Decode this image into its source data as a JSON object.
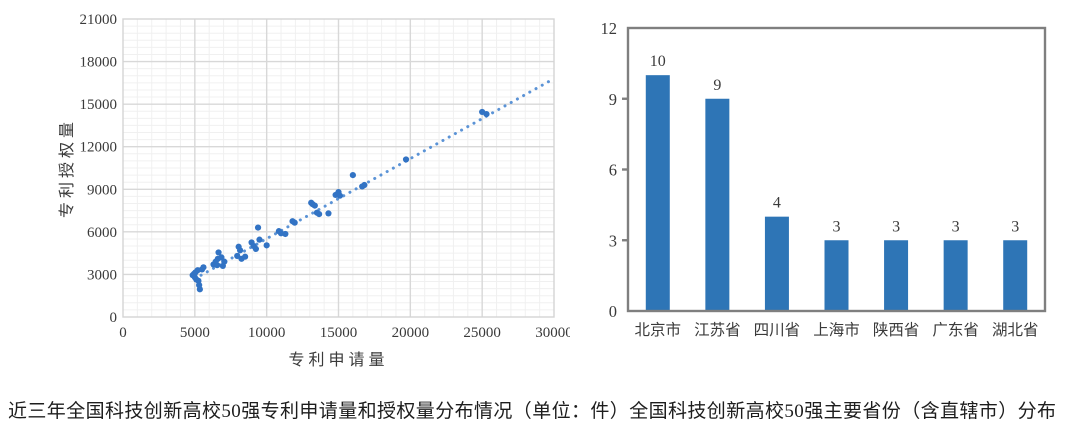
{
  "caption": "近三年全国科技创新高校50强专利申请量和授权量分布情况（单位：件）全国科技创新高校50强主要省份（含直辖市）分布",
  "colors": {
    "marker": "#3273c4",
    "trend": "#5b93d6",
    "bar": "#2e75b6",
    "frame": "#7f7f7f",
    "grid_major": "#d8d8d8",
    "grid_minor": "#f0f0f0",
    "plot_border": "#d4d4d4",
    "axis_text": "#3a3a3a"
  },
  "chart_data": [
    {
      "type": "scatter",
      "title": "",
      "xlabel": "专利申请量",
      "ylabel": "专利授权量",
      "xlim": [
        0,
        30000
      ],
      "ylim": [
        0,
        21000
      ],
      "xticks": [
        0,
        5000,
        10000,
        15000,
        20000,
        25000,
        30000
      ],
      "yticks": [
        0,
        3000,
        6000,
        9000,
        12000,
        15000,
        18000,
        21000
      ],
      "grid": "major+minor",
      "legend_position": "none",
      "trendline": {
        "style": "dotted",
        "x1": 5000,
        "y1": 2700,
        "x2": 30000,
        "y2": 16800
      },
      "points": [
        [
          4850,
          2950
        ],
        [
          4950,
          3050
        ],
        [
          5000,
          2800
        ],
        [
          5050,
          3150
        ],
        [
          5100,
          2650
        ],
        [
          5200,
          3300
        ],
        [
          5250,
          2550
        ],
        [
          5300,
          2250
        ],
        [
          5350,
          1950
        ],
        [
          5500,
          3350
        ],
        [
          5600,
          3500
        ],
        [
          6300,
          3700
        ],
        [
          6450,
          3900
        ],
        [
          6550,
          3650
        ],
        [
          6600,
          4100
        ],
        [
          6650,
          4550
        ],
        [
          6850,
          4200
        ],
        [
          6950,
          3600
        ],
        [
          7050,
          3900
        ],
        [
          7950,
          4300
        ],
        [
          8050,
          4950
        ],
        [
          8150,
          4700
        ],
        [
          8250,
          4100
        ],
        [
          8500,
          4250
        ],
        [
          8950,
          5250
        ],
        [
          9100,
          5000
        ],
        [
          9250,
          4800
        ],
        [
          9400,
          6300
        ],
        [
          9500,
          5450
        ],
        [
          10000,
          5050
        ],
        [
          10850,
          6050
        ],
        [
          11000,
          5900
        ],
        [
          11300,
          5850
        ],
        [
          11800,
          6750
        ],
        [
          11950,
          6650
        ],
        [
          13100,
          8050
        ],
        [
          13200,
          7950
        ],
        [
          13350,
          7850
        ],
        [
          13500,
          7350
        ],
        [
          13650,
          7250
        ],
        [
          14300,
          7300
        ],
        [
          14800,
          8600
        ],
        [
          15000,
          8800
        ],
        [
          15100,
          8550
        ],
        [
          16000,
          10000
        ],
        [
          16650,
          9200
        ],
        [
          16800,
          9300
        ],
        [
          19700,
          11100
        ],
        [
          25000,
          14450
        ],
        [
          25300,
          14300
        ]
      ]
    },
    {
      "type": "bar",
      "categories": [
        "北京市",
        "江苏省",
        "四川省",
        "上海市",
        "陕西省",
        "广东省",
        "湖北省"
      ],
      "values": [
        10,
        9,
        4,
        3,
        3,
        3,
        3
      ],
      "data_labels": [
        "10",
        "9",
        "4",
        "3",
        "3",
        "3",
        "3"
      ],
      "title": "",
      "xlabel": "",
      "ylabel": "",
      "ylim": [
        0,
        12
      ],
      "yticks": [
        0,
        3,
        6,
        9,
        12
      ],
      "grid": "off",
      "legend_position": "none"
    }
  ]
}
